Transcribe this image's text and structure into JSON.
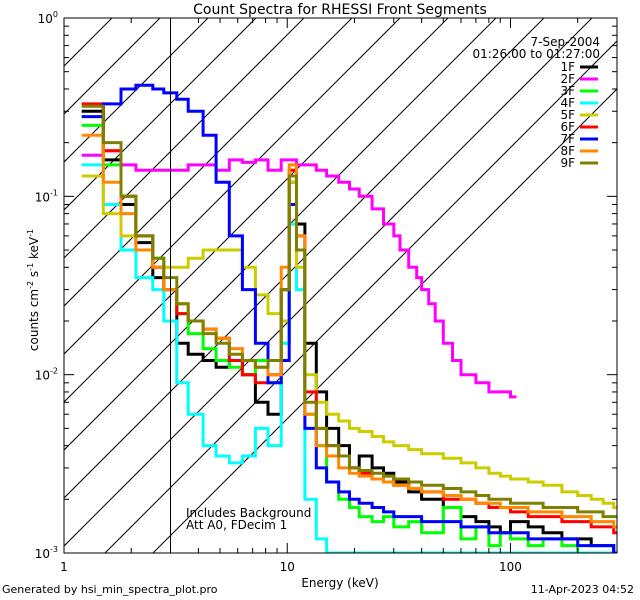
{
  "chart_data": {
    "type": "line",
    "title": "Count Spectra for RHESSI Front Segments",
    "xlabel": "Energy (keV)",
    "ylabel_parts": {
      "base": "counts cm",
      "exp1": "-2",
      "mid": " s",
      "exp2": "-1",
      "mid2": " keV",
      "exp3": "-1"
    },
    "x_scale": "log",
    "y_scale": "log",
    "xlim": [
      1,
      300
    ],
    "ylim": [
      0.001,
      1
    ],
    "x_ticks": [
      {
        "value": 1,
        "label": "1"
      },
      {
        "value": 10,
        "label": "10"
      },
      {
        "value": 100,
        "label": "100"
      }
    ],
    "y_ticks": [
      {
        "value": 1,
        "base": "10",
        "exp": "0"
      },
      {
        "value": 0.1,
        "base": "10",
        "exp": "-1"
      },
      {
        "value": 0.01,
        "base": "10",
        "exp": "-2"
      },
      {
        "value": 0.001,
        "base": "10",
        "exp": "-3"
      }
    ],
    "date": "7-Sep-2004",
    "time_range": "01:26:00 to 01:27:00",
    "attenuator_region": {
      "x_start": 1,
      "x_end": 3
    },
    "annotations": [
      "Includes Background",
      "Att A0, FDecim 1"
    ],
    "series": [
      {
        "name": "1F",
        "color": "#000000",
        "x": [
          1.2,
          1.5,
          1.8,
          2.1,
          2.5,
          2.8,
          3.2,
          3.6,
          4.2,
          4.8,
          5.5,
          6.3,
          7.2,
          8.2,
          9.4,
          10.2,
          11,
          12,
          13.5,
          15,
          17,
          19,
          21,
          24,
          27,
          30,
          35,
          40,
          50,
          60,
          70,
          80,
          90,
          100,
          120,
          140,
          170,
          200,
          230,
          260,
          290
        ],
        "y": [
          0.3,
          0.16,
          0.09,
          0.055,
          0.035,
          0.03,
          0.015,
          0.013,
          0.012,
          0.011,
          0.012,
          0.01,
          0.007,
          0.006,
          0.03,
          0.12,
          0.07,
          0.015,
          0.008,
          0.005,
          0.004,
          0.003,
          0.0035,
          0.003,
          0.0028,
          0.0025,
          0.0022,
          0.002,
          0.0018,
          0.0016,
          0.0015,
          0.0014,
          0.0013,
          0.0015,
          0.0014,
          0.0013,
          0.0012,
          0.0012,
          0.0011,
          0.0011,
          0.001
        ]
      },
      {
        "name": "2F",
        "color": "#ff00ff",
        "x": [
          1.2,
          1.5,
          1.8,
          2.1,
          2.5,
          2.8,
          3.2,
          3.6,
          4.2,
          4.8,
          5.5,
          6.3,
          7.2,
          8.2,
          9.4,
          10.2,
          11,
          12,
          13.5,
          15,
          17,
          19,
          21,
          24,
          27,
          30,
          32,
          35,
          38,
          40,
          43,
          46,
          50,
          55,
          60,
          70,
          80,
          100
        ],
        "y": [
          0.17,
          0.18,
          0.15,
          0.14,
          0.14,
          0.14,
          0.14,
          0.15,
          0.15,
          0.14,
          0.16,
          0.155,
          0.16,
          0.14,
          0.16,
          0.16,
          0.15,
          0.15,
          0.14,
          0.13,
          0.12,
          0.11,
          0.1,
          0.085,
          0.07,
          0.06,
          0.05,
          0.04,
          0.035,
          0.03,
          0.025,
          0.02,
          0.015,
          0.012,
          0.01,
          0.009,
          0.008,
          0.0075
        ]
      },
      {
        "name": "3F",
        "color": "#00ff00",
        "x": [
          1.2,
          1.5,
          1.8,
          2.1,
          2.5,
          2.8,
          3.2,
          3.6,
          4.2,
          4.8,
          5.5,
          6.3,
          7.2,
          8.2,
          9.4,
          10.2,
          11,
          12,
          13.5,
          15,
          17,
          19,
          21,
          24,
          27,
          30,
          35,
          40,
          50,
          60,
          70,
          80,
          90,
          100,
          120,
          140,
          170,
          200,
          230,
          260,
          290
        ],
        "y": [
          0.25,
          0.15,
          0.1,
          0.06,
          0.045,
          0.03,
          0.022,
          0.017,
          0.014,
          0.012,
          0.011,
          0.01,
          0.012,
          0.009,
          0.015,
          0.13,
          0.05,
          0.006,
          0.004,
          0.0025,
          0.002,
          0.0018,
          0.0016,
          0.0015,
          0.0016,
          0.0014,
          0.0015,
          0.0013,
          0.0018,
          0.0012,
          0.0014,
          0.0011,
          0.0013,
          0.0012,
          0.0011,
          0.0012,
          0.0011,
          0.001,
          0.001,
          0.001,
          0.001
        ]
      },
      {
        "name": "4F",
        "color": "#00ffff",
        "x": [
          1.2,
          1.5,
          1.8,
          2.1,
          2.5,
          2.8,
          3.2,
          3.6,
          4.2,
          4.8,
          5.5,
          6.3,
          7.2,
          8.2,
          9.4,
          10.2,
          11,
          12,
          13.5,
          15,
          17,
          19,
          21,
          24,
          27,
          30,
          35,
          40,
          50,
          60,
          70,
          80,
          90,
          100,
          120,
          140,
          170,
          200,
          230,
          260,
          290
        ],
        "y": [
          0.15,
          0.09,
          0.05,
          0.035,
          0.03,
          0.02,
          0.009,
          0.006,
          0.004,
          0.0035,
          0.0032,
          0.0035,
          0.005,
          0.004,
          0.015,
          0.07,
          0.03,
          0.002,
          0.0012,
          0.001,
          0.001,
          0.001,
          0.001,
          0.001,
          0.001,
          0.001,
          0.001,
          0.001,
          0.001,
          0.001,
          0.001,
          0.001,
          0.001,
          0.001,
          0.001,
          0.001,
          0.001,
          0.001,
          0.001,
          0.001,
          0.001
        ]
      },
      {
        "name": "5F",
        "color": "#cccc00",
        "x": [
          1.2,
          1.5,
          1.8,
          2.1,
          2.5,
          2.8,
          3.2,
          3.6,
          4.2,
          4.8,
          5.5,
          6.3,
          7.2,
          8.2,
          9.4,
          10.2,
          11,
          12,
          13.5,
          15,
          17,
          19,
          21,
          24,
          27,
          30,
          35,
          40,
          50,
          60,
          70,
          80,
          90,
          100,
          120,
          140,
          170,
          200,
          230,
          260,
          290
        ],
        "y": [
          0.13,
          0.08,
          0.06,
          0.05,
          0.04,
          0.04,
          0.04,
          0.045,
          0.05,
          0.05,
          0.05,
          0.04,
          0.028,
          0.022,
          0.02,
          0.12,
          0.04,
          0.01,
          0.007,
          0.006,
          0.0055,
          0.005,
          0.0048,
          0.0045,
          0.0042,
          0.004,
          0.0038,
          0.0036,
          0.0034,
          0.0032,
          0.003,
          0.0028,
          0.0027,
          0.0026,
          0.0025,
          0.0024,
          0.0022,
          0.0021,
          0.002,
          0.0019,
          0.0018
        ]
      },
      {
        "name": "6F",
        "color": "#ff0000",
        "x": [
          1.2,
          1.5,
          1.8,
          2.1,
          2.5,
          2.8,
          3.2,
          3.6,
          4.2,
          4.8,
          5.5,
          6.3,
          7.2,
          8.2,
          9.4,
          10.2,
          11,
          12,
          13.5,
          15,
          17,
          19,
          21,
          24,
          27,
          30,
          35,
          40,
          50,
          60,
          70,
          80,
          90,
          100,
          120,
          140,
          170,
          200,
          230,
          260,
          290
        ],
        "y": [
          0.33,
          0.18,
          0.1,
          0.06,
          0.04,
          0.03,
          0.022,
          0.02,
          0.018,
          0.016,
          0.012,
          0.01,
          0.009,
          0.01,
          0.03,
          0.14,
          0.06,
          0.008,
          0.005,
          0.004,
          0.0035,
          0.003,
          0.0028,
          0.0026,
          0.0025,
          0.0024,
          0.0023,
          0.0022,
          0.002,
          0.002,
          0.0019,
          0.0018,
          0.0018,
          0.0017,
          0.0016,
          0.0016,
          0.0015,
          0.0015,
          0.0014,
          0.0014,
          0.0013
        ]
      },
      {
        "name": "7F",
        "color": "#0000ff",
        "x": [
          1.2,
          1.5,
          1.8,
          2.1,
          2.5,
          2.8,
          3.2,
          3.6,
          4.2,
          4.8,
          5.5,
          6.3,
          7.2,
          8.2,
          9.4,
          10.2,
          11,
          12,
          13.5,
          15,
          17,
          19,
          21,
          24,
          27,
          30,
          35,
          40,
          50,
          60,
          70,
          80,
          90,
          100,
          120,
          140,
          170,
          200,
          230,
          260,
          290
        ],
        "y": [
          0.28,
          0.33,
          0.4,
          0.42,
          0.4,
          0.38,
          0.35,
          0.3,
          0.22,
          0.12,
          0.06,
          0.03,
          0.015,
          0.009,
          0.012,
          0.09,
          0.05,
          0.005,
          0.003,
          0.0025,
          0.0022,
          0.002,
          0.0019,
          0.0018,
          0.0017,
          0.0016,
          0.0016,
          0.0015,
          0.0015,
          0.0014,
          0.0014,
          0.0013,
          0.0013,
          0.0013,
          0.0012,
          0.0012,
          0.0012,
          0.0011,
          0.0011,
          0.0011,
          0.001
        ]
      },
      {
        "name": "8F",
        "color": "#ff8800",
        "x": [
          1.2,
          1.5,
          1.8,
          2.1,
          2.5,
          2.8,
          3.2,
          3.6,
          4.2,
          4.8,
          5.5,
          6.3,
          7.2,
          8.2,
          9.4,
          10.2,
          11,
          12,
          13.5,
          15,
          17,
          19,
          21,
          24,
          27,
          30,
          35,
          40,
          50,
          60,
          70,
          80,
          90,
          100,
          120,
          140,
          170,
          200,
          230,
          260,
          290
        ],
        "y": [
          0.22,
          0.12,
          0.08,
          0.05,
          0.04,
          0.03,
          0.025,
          0.02,
          0.018,
          0.016,
          0.014,
          0.012,
          0.011,
          0.01,
          0.04,
          0.15,
          0.06,
          0.006,
          0.004,
          0.0035,
          0.003,
          0.0028,
          0.0027,
          0.0026,
          0.0025,
          0.0024,
          0.0023,
          0.0022,
          0.0021,
          0.002,
          0.0019,
          0.0019,
          0.0018,
          0.0018,
          0.0017,
          0.0017,
          0.0016,
          0.0016,
          0.0015,
          0.0015,
          0.0014
        ]
      },
      {
        "name": "9F",
        "color": "#808000",
        "x": [
          1.2,
          1.5,
          1.8,
          2.1,
          2.5,
          2.8,
          3.2,
          3.6,
          4.2,
          4.8,
          5.5,
          6.3,
          7.2,
          8.2,
          9.4,
          10.2,
          11,
          12,
          13.5,
          15,
          17,
          19,
          21,
          24,
          27,
          30,
          35,
          40,
          50,
          60,
          70,
          80,
          90,
          100,
          120,
          140,
          170,
          200,
          230,
          260,
          290
        ],
        "y": [
          0.32,
          0.2,
          0.1,
          0.06,
          0.045,
          0.035,
          0.025,
          0.02,
          0.017,
          0.015,
          0.013,
          0.012,
          0.011,
          0.012,
          0.03,
          0.13,
          0.05,
          0.007,
          0.005,
          0.004,
          0.0035,
          0.003,
          0.0029,
          0.0028,
          0.0027,
          0.0026,
          0.0025,
          0.0024,
          0.0023,
          0.0022,
          0.0021,
          0.002,
          0.002,
          0.0019,
          0.0019,
          0.0018,
          0.0018,
          0.0017,
          0.0017,
          0.0016,
          0.0016
        ]
      }
    ]
  },
  "footer": {
    "left": "Generated by hsi_min_spectra_plot.pro",
    "right": "11-Apr-2023 04:52"
  }
}
